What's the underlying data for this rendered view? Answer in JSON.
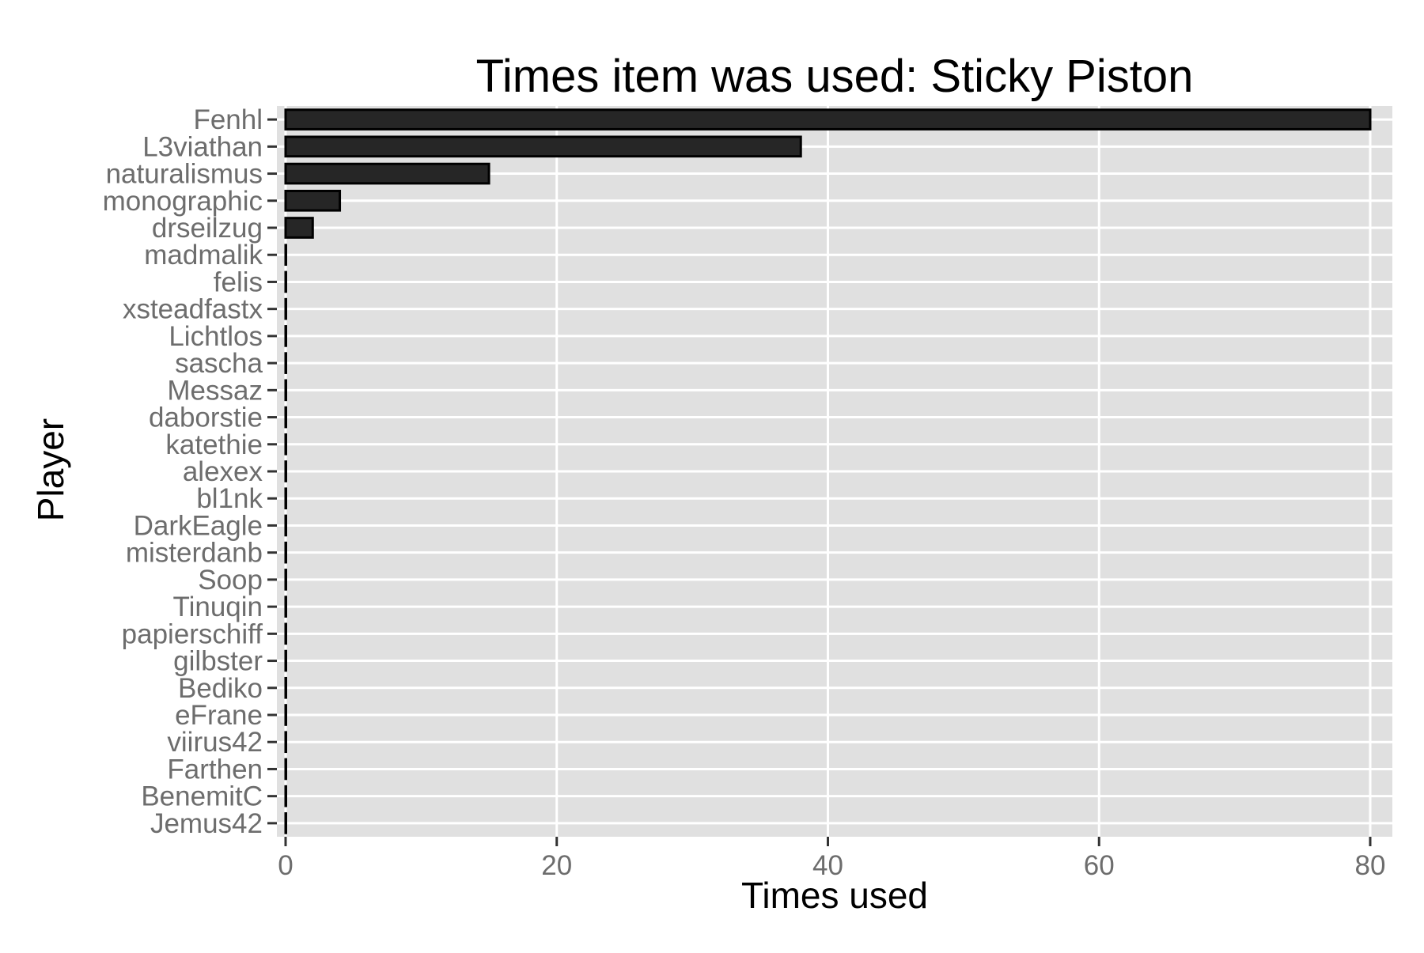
{
  "chart_data": {
    "type": "bar",
    "orientation": "horizontal",
    "title": "Times item was used: Sticky Piston",
    "xlabel": "Times used",
    "ylabel": "Player",
    "xlim": [
      0,
      81.6
    ],
    "xticks": [
      0,
      20,
      40,
      60,
      80
    ],
    "grid": true,
    "legend": "none",
    "categories": [
      "Fenhl",
      "L3viathan",
      "naturalismus",
      "monographic",
      "drseilzug",
      "madmalik",
      "felis",
      "xsteadfastx",
      "Lichtlos",
      "sascha",
      "Messaz",
      "daborstie",
      "katethie",
      "alexex",
      "bl1nk",
      "DarkEagle",
      "misterdanb",
      "Soop",
      "Tinuqin",
      "papierschiff",
      "gilbster",
      "Bediko",
      "eFrane",
      "viirus42",
      "Farthen",
      "BenemitC",
      "Jemus42"
    ],
    "values": [
      80,
      38,
      15,
      4,
      2,
      0,
      0,
      0,
      0,
      0,
      0,
      0,
      0,
      0,
      0,
      0,
      0,
      0,
      0,
      0,
      0,
      0,
      0,
      0,
      0,
      0,
      0
    ],
    "colors": {
      "panel_background": "#e0e0e0",
      "grid": "#ffffff",
      "bar_fill": "#262626",
      "bar_outline": "#000000",
      "tick_text": "#6d6d6d"
    }
  }
}
